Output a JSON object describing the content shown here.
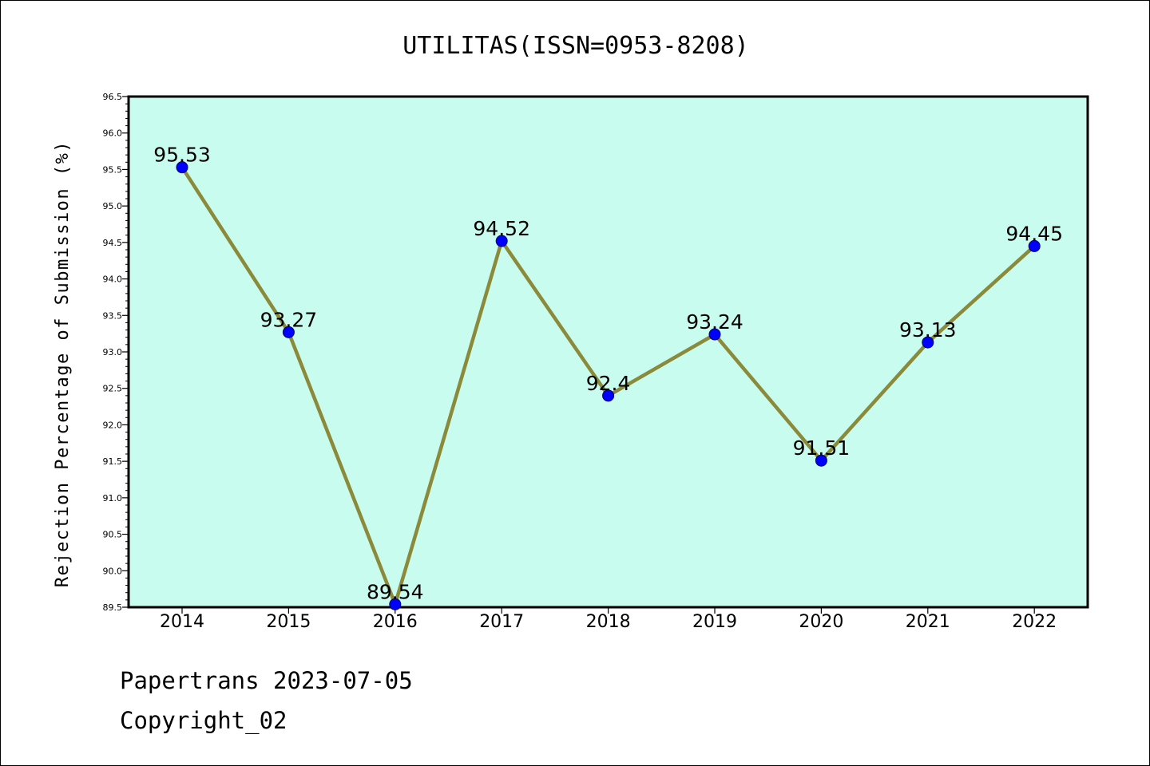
{
  "chart_data": {
    "type": "line",
    "title": "UTILITAS(ISSN=0953-8208)",
    "ylabel": "Rejection Percentage of Submission (%)",
    "xlabel": "",
    "categories": [
      "2014",
      "2015",
      "2016",
      "2017",
      "2018",
      "2019",
      "2020",
      "2021",
      "2022"
    ],
    "values": [
      95.53,
      93.27,
      89.54,
      94.52,
      92.4,
      93.24,
      91.51,
      93.13,
      94.45
    ],
    "data_labels": [
      "95.53",
      "93.27",
      "89.54",
      "94.52",
      "92.4",
      "93.24",
      "91.51",
      "93.13",
      "94.45"
    ],
    "ylim": [
      89.5,
      96.5
    ],
    "yticks": [
      "89.5",
      "90.0",
      "90.5",
      "91.0",
      "91.5",
      "92.0",
      "92.5",
      "93.0",
      "93.5",
      "94.0",
      "94.5",
      "95.0",
      "95.5",
      "96.0",
      "96.5"
    ],
    "grid": false,
    "legend": "none",
    "colors": {
      "plot_background": "#c8fcee",
      "line": "#8b8a3a",
      "marker": "#0000ff"
    }
  },
  "footer": {
    "line1": "Papertrans 2023-07-05",
    "line2": "Copyright_02"
  }
}
